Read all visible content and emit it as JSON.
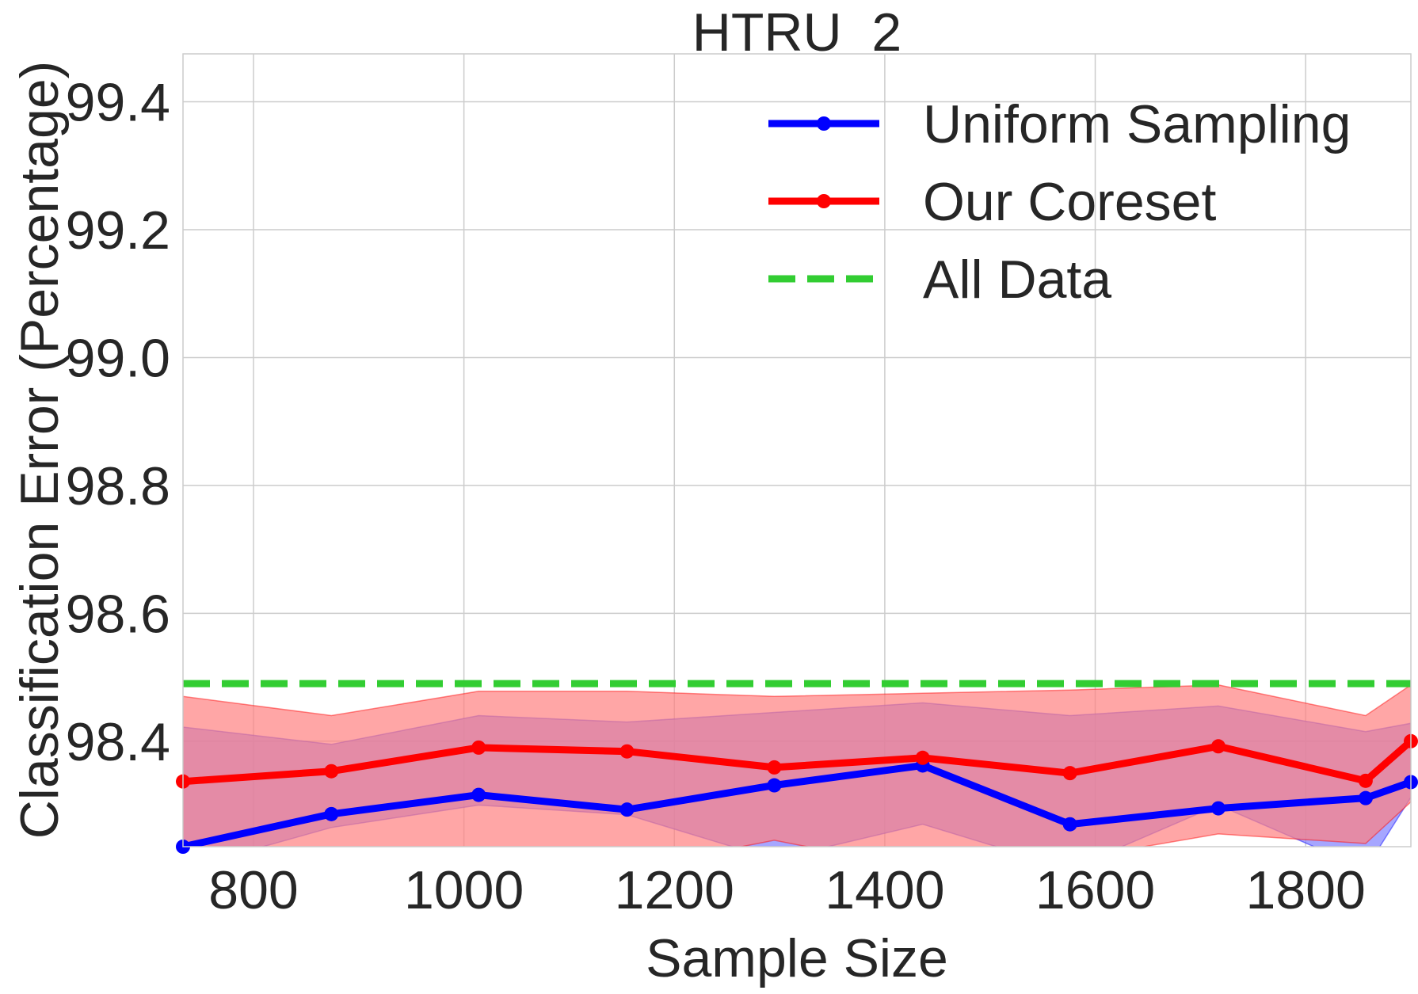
{
  "chart_data": {
    "type": "line",
    "title": "HTRU_2",
    "xlabel": "Sample Size",
    "ylabel": "Classification Error (Percentage)",
    "xlim": [
      733,
      1900
    ],
    "ylim": [
      98.235,
      99.475
    ],
    "xticks": [
      800,
      1000,
      1200,
      1400,
      1600,
      1800
    ],
    "yticks": [
      98.4,
      98.6,
      98.8,
      99.0,
      99.2,
      99.4
    ],
    "xtick_labels": [
      "800",
      "1000",
      "1200",
      "1400",
      "1600",
      "1800"
    ],
    "ytick_labels": [
      "98.4",
      "98.6",
      "98.8",
      "99.0",
      "99.2",
      "99.4"
    ],
    "grid": true,
    "legend_position": "top-right",
    "series": [
      {
        "name": "Uniform Sampling",
        "color": "#0000ff",
        "band_color": "#8080ff",
        "marker": "circle",
        "x": [
          733,
          874,
          1014,
          1155,
          1295,
          1436,
          1576,
          1717,
          1857,
          1900
        ],
        "y": [
          98.235,
          98.286,
          98.316,
          98.293,
          98.331,
          98.362,
          98.27,
          98.295,
          98.311,
          98.336
        ],
        "upper": [
          98.422,
          98.395,
          98.44,
          98.43,
          98.445,
          98.46,
          98.44,
          98.455,
          98.415,
          98.428
        ],
        "lower": [
          98.2,
          98.265,
          98.3,
          98.285,
          98.215,
          98.27,
          98.2,
          98.3,
          98.2,
          98.312
        ]
      },
      {
        "name": "Our Coreset",
        "color": "#ff0000",
        "band_color": "#ff8080",
        "marker": "circle",
        "x": [
          733,
          874,
          1014,
          1155,
          1295,
          1436,
          1576,
          1717,
          1857,
          1900
        ],
        "y": [
          98.337,
          98.353,
          98.39,
          98.384,
          98.359,
          98.374,
          98.35,
          98.392,
          98.338,
          98.4
        ],
        "upper": [
          98.47,
          98.44,
          98.478,
          98.478,
          98.47,
          98.475,
          98.48,
          98.488,
          98.44,
          98.488
        ],
        "lower": [
          98.22,
          98.23,
          98.2,
          98.2,
          98.245,
          98.2,
          98.215,
          98.255,
          98.24,
          98.305
        ]
      },
      {
        "name": "All Data",
        "color": "#32cd32",
        "style": "dashed",
        "y_constant": 98.49
      }
    ]
  }
}
